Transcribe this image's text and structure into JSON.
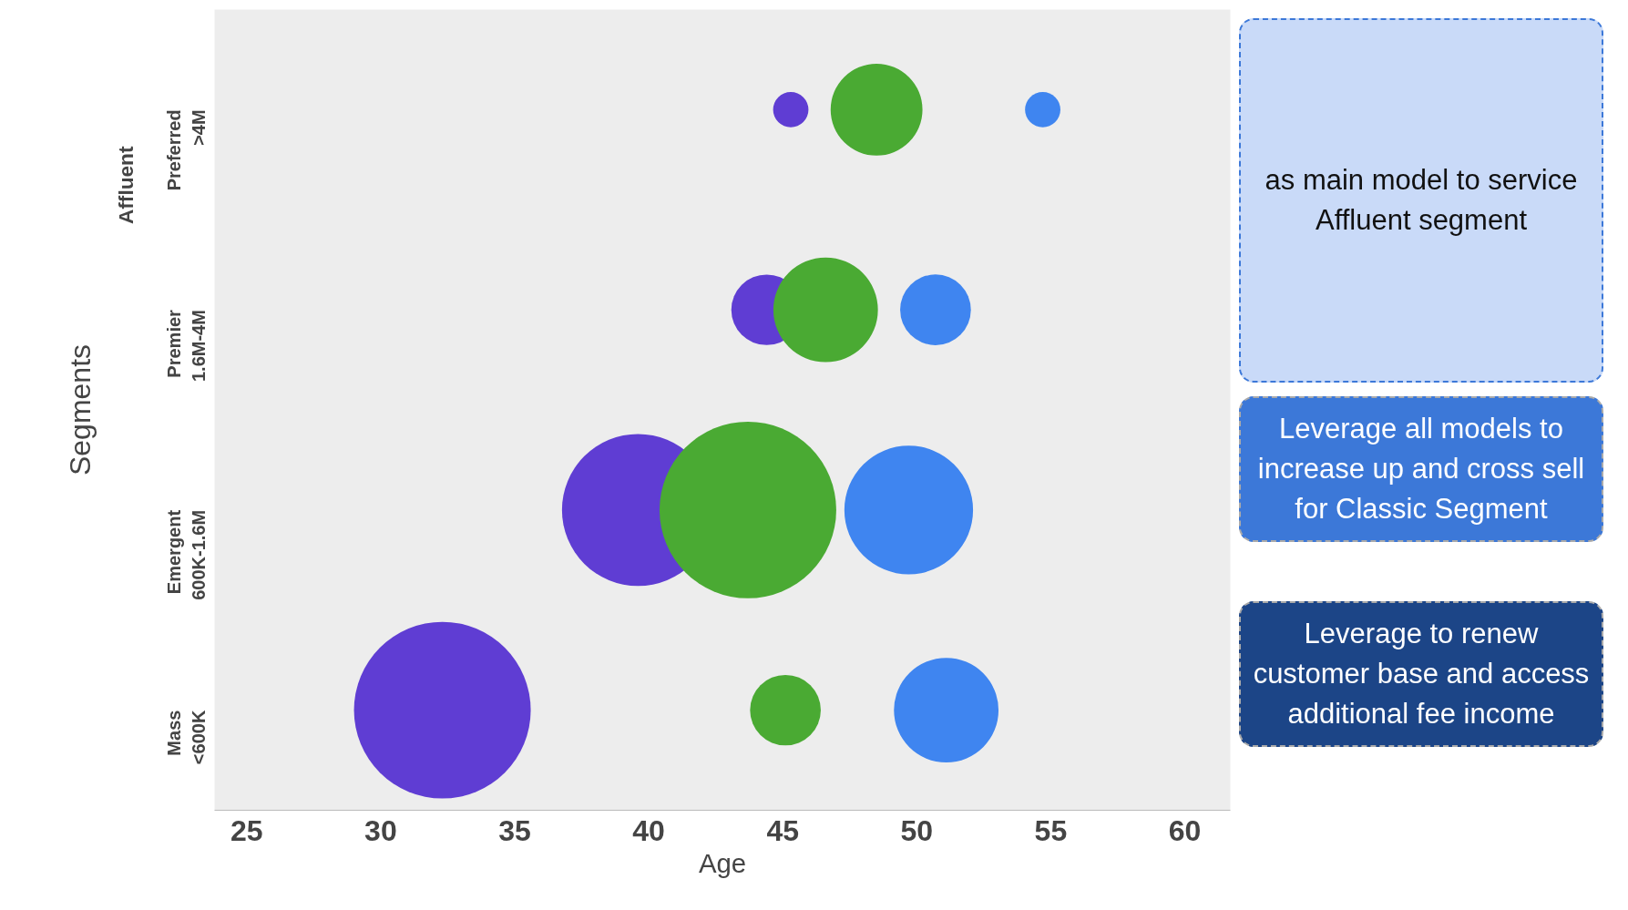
{
  "chart_data": {
    "type": "bubble",
    "orientation": "horizontal",
    "xlabel": "Age",
    "ylabel": "Segments",
    "categories": [
      "Preferred\n>4M",
      "Premier\n1.6M-4M",
      "Emergent\n600K-1.6M",
      "Mass\n<600K"
    ],
    "series": [
      {
        "color": "#5f3dd3",
        "values": [
          45.3,
          44.4,
          39.6,
          32.3
        ],
        "sizes": [
          0.04,
          0.16,
          0.74,
          1
        ]
      },
      {
        "color": "#4aaa33",
        "values": [
          48.5,
          46.6,
          43.7,
          45.1
        ],
        "sizes": [
          0.27,
          0.35,
          1,
          0.16
        ]
      },
      {
        "color": "#3f85f0",
        "values": [
          54.7,
          50.7,
          49.7,
          51.1
        ],
        "sizes": [
          0.04,
          0.16,
          0.53,
          0.35
        ]
      }
    ],
    "xlim": [
      23.8,
      61.7
    ],
    "xticks": [
      25,
      30,
      35,
      40,
      45,
      50,
      55,
      60
    ],
    "grid": false,
    "annotations": [
      "Affluent",
      "as main model to service Affluent segment",
      "Leverage all models to increase up and cross sell for Classic Segment",
      "Leverage to renew customer base and access additional fee income"
    ]
  }
}
